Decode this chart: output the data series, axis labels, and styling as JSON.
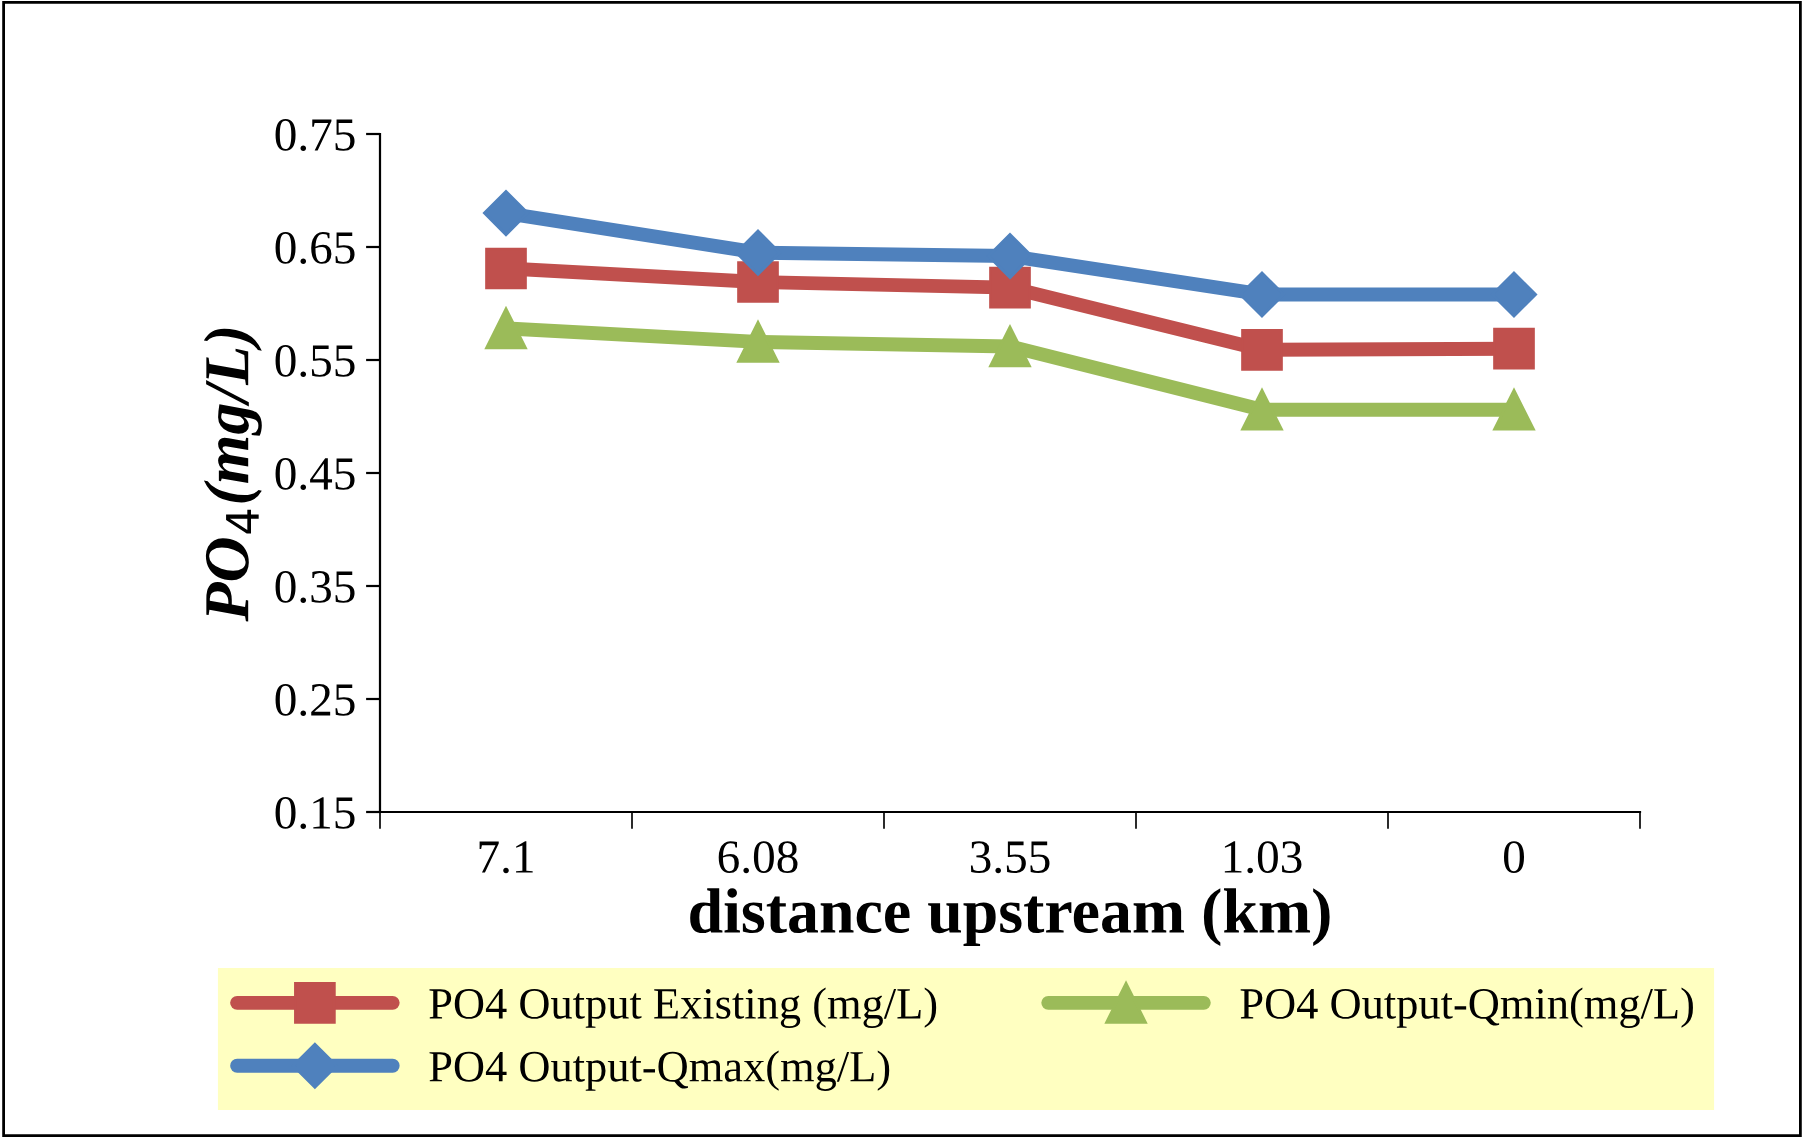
{
  "chart_data": {
    "type": "line",
    "xlabel": "distance upstream (km)",
    "ylabel": "PO$_{4}$(mg/L)",
    "categories": [
      "7.1",
      "6.08",
      "3.55",
      "1.03",
      "0"
    ],
    "series": [
      {
        "name": "PO4 Output Existing (mg/L)",
        "color": "#c0504d",
        "marker": "square",
        "values": [
          0.631,
          0.619,
          0.614,
          0.559,
          0.56
        ]
      },
      {
        "name": "PO4 Output-Qmax(mg/L)",
        "color": "#4f81bd",
        "marker": "diamond",
        "values": [
          0.68,
          0.645,
          0.642,
          0.608,
          0.608
        ]
      },
      {
        "name": "PO4 Output-Qmin(mg/L)",
        "color": "#9bbb59",
        "marker": "triangle",
        "values": [
          0.578,
          0.566,
          0.562,
          0.506,
          0.506
        ]
      }
    ],
    "ylim": [
      0.15,
      0.75
    ],
    "yticks": [
      0.15,
      0.25,
      0.35,
      0.45,
      0.55,
      0.65,
      0.75
    ],
    "grid": false,
    "legend": "bottom",
    "line_style": "solid"
  }
}
